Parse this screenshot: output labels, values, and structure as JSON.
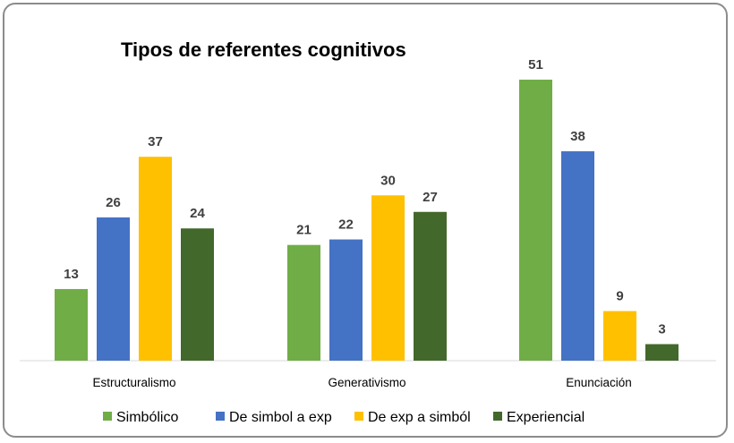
{
  "chart_data": {
    "type": "bar",
    "title": "Tipos de referentes cognitivos",
    "categories": [
      "Estructuralismo",
      "Generativismo",
      "Enunciación"
    ],
    "series": [
      {
        "name": "Simbólico",
        "color": "#70ad47",
        "values": [
          13,
          21,
          51
        ]
      },
      {
        "name": "De simbol a exp",
        "color": "#4472c4",
        "values": [
          26,
          22,
          38
        ]
      },
      {
        "name": "De exp a simból",
        "color": "#ffc000",
        "values": [
          37,
          30,
          9
        ]
      },
      {
        "name": "Experiencial",
        "color": "#43682b",
        "values": [
          24,
          27,
          3
        ]
      }
    ],
    "xlabel": "",
    "ylabel": "",
    "ylim": [
      0,
      51
    ],
    "grid": false,
    "legend": "bottom",
    "data_labels": true
  }
}
